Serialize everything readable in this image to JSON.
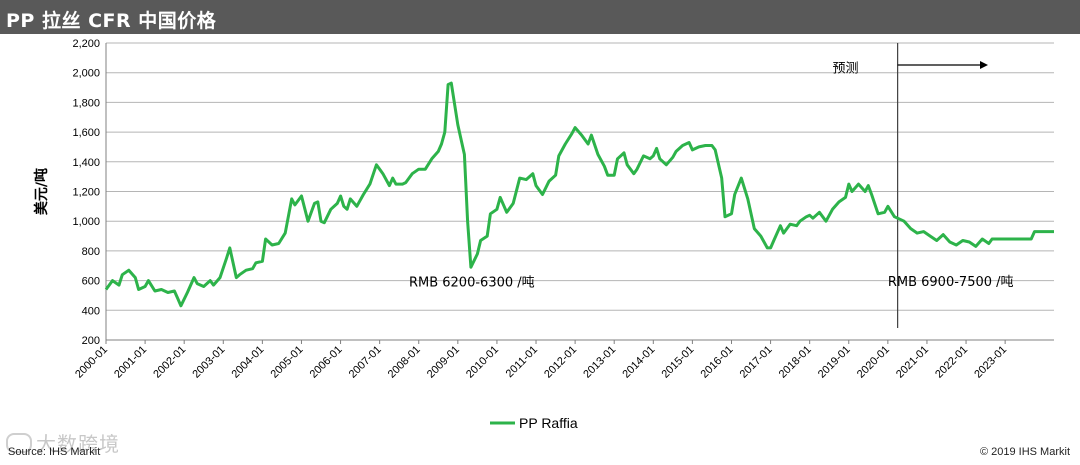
{
  "header": {
    "title": "PP 拉丝 CFR 中国价格"
  },
  "footer": {
    "source": "Source: IHS Markit",
    "copyright": "© 2019 IHS Markit"
  },
  "watermark": {
    "text": "大数跨境"
  },
  "chart_data": {
    "type": "line",
    "title": "PP 拉丝 CFR 中国价格",
    "xlabel": "",
    "ylabel": "美元/吨",
    "ylim": [
      200,
      2200
    ],
    "yticks": [
      200,
      400,
      600,
      800,
      1000,
      1200,
      1400,
      1600,
      1800,
      2000,
      2200
    ],
    "ytick_labels": [
      "200",
      "400",
      "600",
      "800",
      "1,000",
      "1,200",
      "1,400",
      "1,600",
      "1,800",
      "2,000",
      "2,200"
    ],
    "xlim": [
      "2000-01",
      "2024-04"
    ],
    "xtick_labels": [
      "2000-01",
      "2001-01",
      "2002-01",
      "2003-01",
      "2004-01",
      "2005-01",
      "2006-01",
      "2007-01",
      "2008-01",
      "2009-01",
      "2010-01",
      "2011-01",
      "2012-01",
      "2013-01",
      "2014-01",
      "2015-01",
      "2016-01",
      "2017-01",
      "2018-01",
      "2019-01",
      "2020-01",
      "2021-01",
      "2022-01",
      "2023-01"
    ],
    "grid": true,
    "legend": "bottom-center",
    "series": [
      {
        "name": "PP Raffia",
        "color": "#2db34a",
        "points": [
          [
            "2000-01",
            540
          ],
          [
            "2000-03",
            600
          ],
          [
            "2000-05",
            570
          ],
          [
            "2000-06",
            640
          ],
          [
            "2000-08",
            670
          ],
          [
            "2000-10",
            620
          ],
          [
            "2000-11",
            540
          ],
          [
            "2001-01",
            560
          ],
          [
            "2001-02",
            600
          ],
          [
            "2001-04",
            530
          ],
          [
            "2001-06",
            540
          ],
          [
            "2001-08",
            520
          ],
          [
            "2001-10",
            530
          ],
          [
            "2001-11",
            480
          ],
          [
            "2001-12",
            430
          ],
          [
            "2002-02",
            520
          ],
          [
            "2002-04",
            620
          ],
          [
            "2002-05",
            580
          ],
          [
            "2002-07",
            560
          ],
          [
            "2002-09",
            600
          ],
          [
            "2002-10",
            570
          ],
          [
            "2002-12",
            620
          ],
          [
            "2003-02",
            750
          ],
          [
            "2003-03",
            820
          ],
          [
            "2003-05",
            620
          ],
          [
            "2003-06",
            640
          ],
          [
            "2003-08",
            670
          ],
          [
            "2003-10",
            680
          ],
          [
            "2003-11",
            720
          ],
          [
            "2004-01",
            730
          ],
          [
            "2004-02",
            880
          ],
          [
            "2004-04",
            840
          ],
          [
            "2004-06",
            850
          ],
          [
            "2004-08",
            920
          ],
          [
            "2004-10",
            1150
          ],
          [
            "2004-11",
            1110
          ],
          [
            "2005-01",
            1170
          ],
          [
            "2005-03",
            1000
          ],
          [
            "2005-05",
            1120
          ],
          [
            "2005-06",
            1130
          ],
          [
            "2005-07",
            1000
          ],
          [
            "2005-08",
            990
          ],
          [
            "2005-10",
            1080
          ],
          [
            "2005-12",
            1120
          ],
          [
            "2006-01",
            1170
          ],
          [
            "2006-02",
            1100
          ],
          [
            "2006-03",
            1080
          ],
          [
            "2006-04",
            1150
          ],
          [
            "2006-06",
            1100
          ],
          [
            "2006-08",
            1180
          ],
          [
            "2006-10",
            1250
          ],
          [
            "2006-12",
            1380
          ],
          [
            "2007-02",
            1320
          ],
          [
            "2007-04",
            1240
          ],
          [
            "2007-05",
            1290
          ],
          [
            "2007-06",
            1250
          ],
          [
            "2007-08",
            1250
          ],
          [
            "2007-09",
            1260
          ],
          [
            "2007-11",
            1320
          ],
          [
            "2008-01",
            1350
          ],
          [
            "2008-03",
            1350
          ],
          [
            "2008-05",
            1420
          ],
          [
            "2008-07",
            1470
          ],
          [
            "2008-08",
            1520
          ],
          [
            "2008-09",
            1600
          ],
          [
            "2008-10",
            1920
          ],
          [
            "2008-11",
            1930
          ],
          [
            "2009-01",
            1650
          ],
          [
            "2009-03",
            1450
          ],
          [
            "2009-04",
            1000
          ],
          [
            "2009-05",
            690
          ],
          [
            "2009-07",
            780
          ],
          [
            "2009-08",
            870
          ],
          [
            "2009-10",
            900
          ],
          [
            "2009-11",
            1050
          ],
          [
            "2010-01",
            1080
          ],
          [
            "2010-02",
            1160
          ],
          [
            "2010-04",
            1060
          ],
          [
            "2010-06",
            1120
          ],
          [
            "2010-08",
            1290
          ],
          [
            "2010-10",
            1280
          ],
          [
            "2010-12",
            1320
          ],
          [
            "2011-01",
            1240
          ],
          [
            "2011-03",
            1180
          ],
          [
            "2011-05",
            1270
          ],
          [
            "2011-07",
            1310
          ],
          [
            "2011-08",
            1440
          ],
          [
            "2011-10",
            1520
          ],
          [
            "2011-12",
            1590
          ],
          [
            "2012-01",
            1630
          ],
          [
            "2012-03",
            1580
          ],
          [
            "2012-05",
            1520
          ],
          [
            "2012-06",
            1580
          ],
          [
            "2012-08",
            1450
          ],
          [
            "2012-10",
            1370
          ],
          [
            "2012-11",
            1310
          ],
          [
            "2013-01",
            1310
          ],
          [
            "2013-02",
            1420
          ],
          [
            "2013-04",
            1460
          ],
          [
            "2013-05",
            1380
          ],
          [
            "2013-07",
            1320
          ],
          [
            "2013-08",
            1350
          ],
          [
            "2013-10",
            1440
          ],
          [
            "2013-12",
            1420
          ],
          [
            "2014-01",
            1440
          ],
          [
            "2014-02",
            1490
          ],
          [
            "2014-03",
            1420
          ],
          [
            "2014-05",
            1380
          ],
          [
            "2014-07",
            1430
          ],
          [
            "2014-08",
            1470
          ],
          [
            "2014-10",
            1510
          ],
          [
            "2014-12",
            1530
          ],
          [
            "2015-01",
            1480
          ],
          [
            "2015-03",
            1500
          ],
          [
            "2015-05",
            1510
          ],
          [
            "2015-07",
            1510
          ],
          [
            "2015-08",
            1480
          ],
          [
            "2015-10",
            1290
          ],
          [
            "2015-11",
            1030
          ],
          [
            "2016-01",
            1050
          ],
          [
            "2016-02",
            1180
          ],
          [
            "2016-04",
            1290
          ],
          [
            "2016-06",
            1150
          ],
          [
            "2016-08",
            950
          ],
          [
            "2016-10",
            900
          ],
          [
            "2016-12",
            820
          ],
          [
            "2017-01",
            820
          ],
          [
            "2017-02",
            870
          ],
          [
            "2017-04",
            970
          ],
          [
            "2017-05",
            920
          ],
          [
            "2017-07",
            980
          ],
          [
            "2017-09",
            970
          ],
          [
            "2017-10",
            1000
          ],
          [
            "2017-12",
            1030
          ],
          [
            "2018-01",
            1040
          ],
          [
            "2018-02",
            1020
          ],
          [
            "2018-04",
            1060
          ],
          [
            "2018-06",
            1000
          ],
          [
            "2018-08",
            1080
          ],
          [
            "2018-10",
            1130
          ],
          [
            "2018-12",
            1160
          ],
          [
            "2019-01",
            1250
          ],
          [
            "2019-02",
            1200
          ],
          [
            "2019-04",
            1250
          ],
          [
            "2019-06",
            1200
          ],
          [
            "2019-07",
            1240
          ],
          [
            "2019-08",
            1180
          ],
          [
            "2019-10",
            1050
          ],
          [
            "2019-12",
            1060
          ],
          [
            "2020-01",
            1100
          ],
          [
            "2020-03",
            1030
          ],
          [
            "2020-04",
            1020
          ],
          [
            "2020-06",
            1000
          ],
          [
            "2020-08",
            950
          ],
          [
            "2020-10",
            920
          ],
          [
            "2020-12",
            930
          ],
          [
            "2021-02",
            900
          ],
          [
            "2021-04",
            870
          ],
          [
            "2021-06",
            910
          ],
          [
            "2021-08",
            860
          ],
          [
            "2021-10",
            840
          ],
          [
            "2021-12",
            870
          ],
          [
            "2022-02",
            860
          ],
          [
            "2022-04",
            830
          ],
          [
            "2022-06",
            880
          ],
          [
            "2022-08",
            850
          ],
          [
            "2022-09",
            880
          ],
          [
            "2022-12",
            880
          ],
          [
            "2023-03",
            880
          ],
          [
            "2023-06",
            880
          ],
          [
            "2023-09",
            880
          ],
          [
            "2023-10",
            930
          ],
          [
            "2023-12",
            930
          ],
          [
            "2024-04",
            930
          ]
        ]
      }
    ],
    "annotations": [
      {
        "text": "RMB 6200-6300 /吨",
        "x": "2007-10",
        "y": 560
      },
      {
        "text": "RMB 6900-7500 /吨",
        "x": "2020-01",
        "y": 565
      },
      {
        "text": "预测",
        "x": "2018-08",
        "y": 2000
      }
    ],
    "forecast_start": "2020-04"
  }
}
